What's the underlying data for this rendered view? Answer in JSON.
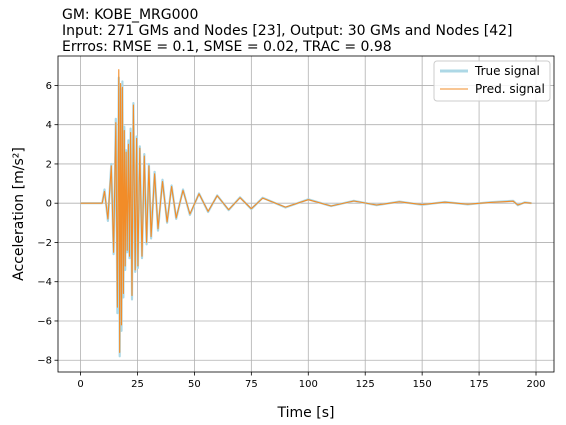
{
  "chart_data": {
    "type": "line",
    "title_lines": [
      "GM: KOBE_MRG000",
      "Input: 271 GMs and Nodes [23], Output: 30 GMs and Nodes [42]",
      "Errros: RMSE = 0.1, SMSE = 0.02, TRAC = 0.98"
    ],
    "xlabel": "Time [s]",
    "ylabel": "Acceleration [m/s²]",
    "xlim": [
      -9.9,
      207.9
    ],
    "ylim": [
      -8.6,
      7.5
    ],
    "xticks": [
      0,
      25,
      50,
      75,
      100,
      125,
      150,
      175,
      200
    ],
    "yticks": [
      -8,
      -6,
      -4,
      -2,
      0,
      2,
      4,
      6
    ],
    "grid": true,
    "legend_position": "top-right",
    "colors": {
      "true_signal": "#add8e6",
      "pred_signal": "#f28c28",
      "grid": "#b0b0b0"
    },
    "series": [
      {
        "name": "True signal",
        "x": [
          0,
          9.5,
          10.5,
          12,
          13.5,
          14.5,
          15.5,
          16.2,
          16.8,
          17.2,
          17.6,
          18.0,
          18.4,
          18.8,
          19.2,
          19.6,
          20.0,
          20.5,
          21.0,
          21.5,
          22.0,
          22.6,
          23.2,
          24.0,
          24.6,
          25.2,
          26.0,
          27.0,
          28.0,
          29.0,
          30.0,
          31.0,
          32.5,
          34,
          36,
          38,
          40,
          42,
          45,
          48,
          52,
          56,
          60,
          65,
          70,
          75,
          80,
          90,
          100,
          110,
          120,
          130,
          140,
          150,
          160,
          170,
          180,
          190,
          192,
          195,
          198
        ],
        "y": [
          0,
          0,
          0.7,
          -0.9,
          2.0,
          -2.6,
          4.3,
          -5.6,
          6.4,
          -7.8,
          5.8,
          -6.5,
          6.2,
          -4.8,
          3.9,
          -3.4,
          2.7,
          -2.5,
          3.2,
          -2.8,
          3.8,
          -4.9,
          5.1,
          -3.5,
          3.4,
          -3.3,
          2.9,
          -2.8,
          2.5,
          -2.1,
          2.0,
          -1.8,
          1.6,
          -1.4,
          1.2,
          -1.0,
          0.9,
          -0.8,
          0.7,
          -0.6,
          0.5,
          -0.45,
          0.4,
          -0.35,
          0.3,
          -0.3,
          0.28,
          -0.22,
          0.2,
          -0.15,
          0.12,
          -0.1,
          0.08,
          -0.08,
          0.06,
          -0.06,
          0.05,
          0.12,
          -0.1,
          0.04,
          0
        ]
      },
      {
        "name": "Pred. signal",
        "x": [
          0,
          9.5,
          10.5,
          12,
          13.5,
          14.5,
          15.5,
          16.2,
          16.8,
          17.2,
          17.6,
          18.0,
          18.4,
          18.8,
          19.2,
          19.6,
          20.0,
          20.5,
          21.0,
          21.5,
          22.0,
          22.6,
          23.2,
          24.0,
          24.6,
          25.2,
          26.0,
          27.0,
          28.0,
          29.0,
          30.0,
          31.0,
          32.5,
          34,
          36,
          38,
          40,
          42,
          45,
          48,
          52,
          56,
          60,
          65,
          70,
          75,
          80,
          90,
          100,
          110,
          120,
          130,
          140,
          150,
          160,
          170,
          180,
          190,
          192,
          195,
          198
        ],
        "y": [
          0,
          0,
          0.6,
          -0.8,
          1.9,
          -2.5,
          4.1,
          -5.3,
          6.8,
          -7.6,
          6.1,
          -6.2,
          5.9,
          -4.6,
          3.7,
          -3.2,
          2.6,
          -2.4,
          3.0,
          -2.7,
          3.6,
          -4.7,
          5.0,
          -3.4,
          3.3,
          -3.2,
          2.8,
          -2.7,
          2.4,
          -2.0,
          1.9,
          -1.7,
          1.5,
          -1.3,
          1.1,
          -0.95,
          0.85,
          -0.75,
          0.65,
          -0.55,
          0.48,
          -0.42,
          0.38,
          -0.33,
          0.28,
          -0.28,
          0.26,
          -0.2,
          0.18,
          -0.14,
          0.11,
          -0.09,
          0.07,
          -0.07,
          0.05,
          -0.05,
          0.04,
          0.1,
          -0.09,
          0.03,
          0
        ]
      }
    ]
  }
}
